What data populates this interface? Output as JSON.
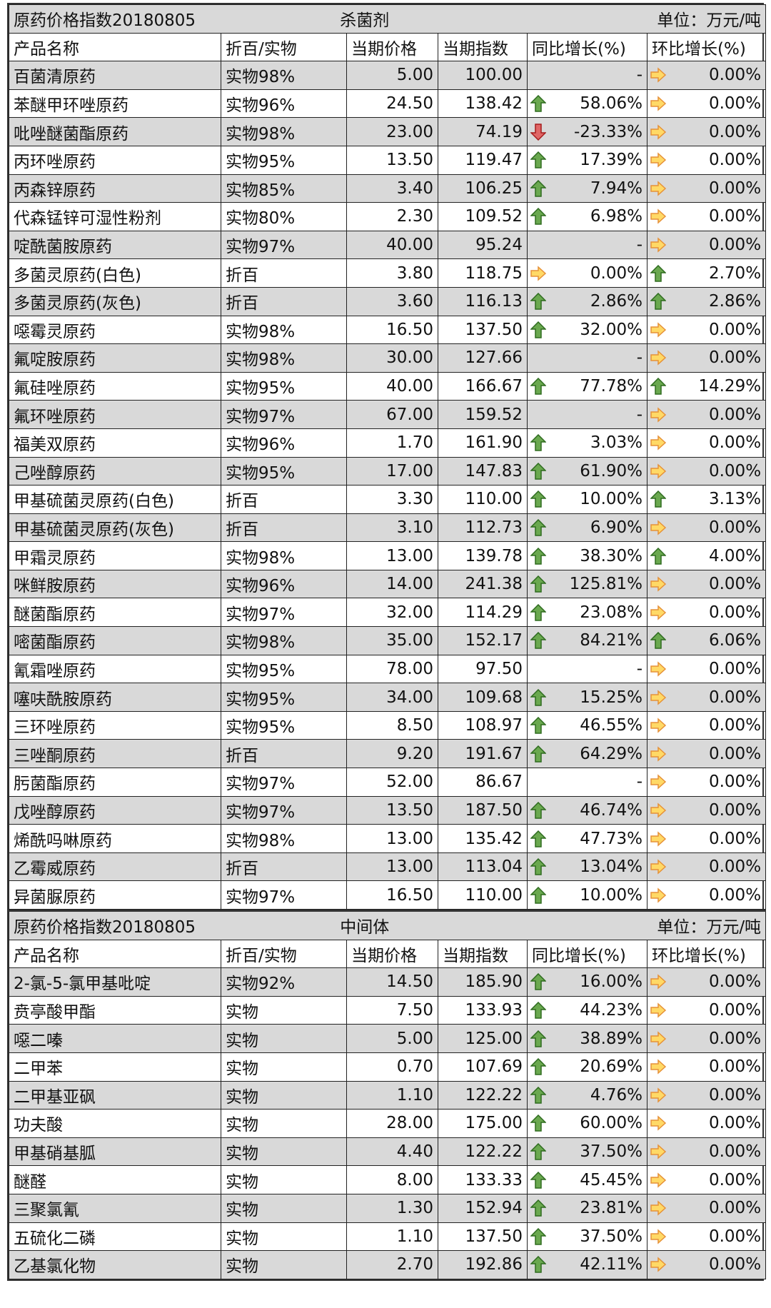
{
  "tables": [
    {
      "title": "原药价格指数20180805",
      "category": "杀菌剂",
      "unit": "单位：万元/吨",
      "columns": [
        "产品名称",
        "折百/实物",
        "当期价格",
        "当期指数",
        "同比增长(%)",
        "环比增长(%)"
      ],
      "rows": [
        [
          "百菌清原药",
          "实物98%",
          "5.00",
          "100.00",
          "-",
          "0.00%"
        ],
        [
          "苯醚甲环唑原药",
          "实物96%",
          "24.50",
          "138.42",
          "58.06%",
          "0.00%"
        ],
        [
          "吡唑醚菌酯原药",
          "实物98%",
          "23.00",
          "74.19",
          "-23.33%",
          "0.00%"
        ],
        [
          "丙环唑原药",
          "实物95%",
          "13.50",
          "119.47",
          "17.39%",
          "0.00%"
        ],
        [
          "丙森锌原药",
          "实物85%",
          "3.40",
          "106.25",
          "7.94%",
          "0.00%"
        ],
        [
          "代森锰锌可湿性粉剂",
          "实物80%",
          "2.30",
          "109.52",
          "6.98%",
          "0.00%"
        ],
        [
          "啶酰菌胺原药",
          "实物97%",
          "40.00",
          "95.24",
          "-",
          "0.00%"
        ],
        [
          "多菌灵原药(白色)",
          "折百",
          "3.80",
          "118.75",
          "0.00%",
          "2.70%"
        ],
        [
          "多菌灵原药(灰色)",
          "折百",
          "3.60",
          "116.13",
          "2.86%",
          "2.86%"
        ],
        [
          "噁霉灵原药",
          "实物98%",
          "16.50",
          "137.50",
          "32.00%",
          "0.00%"
        ],
        [
          "氟啶胺原药",
          "实物98%",
          "30.00",
          "127.66",
          "-",
          "0.00%"
        ],
        [
          "氟硅唑原药",
          "实物95%",
          "40.00",
          "166.67",
          "77.78%",
          "14.29%"
        ],
        [
          "氟环唑原药",
          "实物97%",
          "67.00",
          "159.52",
          "-",
          "0.00%"
        ],
        [
          "福美双原药",
          "实物96%",
          "1.70",
          "161.90",
          "3.03%",
          "0.00%"
        ],
        [
          "己唑醇原药",
          "实物95%",
          "17.00",
          "147.83",
          "61.90%",
          "0.00%"
        ],
        [
          "甲基硫菌灵原药(白色)",
          "折百",
          "3.30",
          "110.00",
          "10.00%",
          "3.13%"
        ],
        [
          "甲基硫菌灵原药(灰色)",
          "折百",
          "3.10",
          "112.73",
          "6.90%",
          "0.00%"
        ],
        [
          "甲霜灵原药",
          "实物98%",
          "13.00",
          "139.78",
          "38.30%",
          "4.00%"
        ],
        [
          "咪鲜胺原药",
          "实物96%",
          "14.00",
          "241.38",
          "125.81%",
          "0.00%"
        ],
        [
          "醚菌酯原药",
          "实物97%",
          "32.00",
          "114.29",
          "23.08%",
          "0.00%"
        ],
        [
          "嘧菌酯原药",
          "实物98%",
          "35.00",
          "152.17",
          "84.21%",
          "6.06%"
        ],
        [
          "氰霜唑原药",
          "实物95%",
          "78.00",
          "97.50",
          "-",
          "0.00%"
        ],
        [
          "噻呋酰胺原药",
          "实物95%",
          "34.00",
          "109.68",
          "15.25%",
          "0.00%"
        ],
        [
          "三环唑原药",
          "实物95%",
          "8.50",
          "108.97",
          "46.55%",
          "0.00%"
        ],
        [
          "三唑酮原药",
          "折百",
          "9.20",
          "191.67",
          "64.29%",
          "0.00%"
        ],
        [
          "肟菌酯原药",
          "实物97%",
          "52.00",
          "86.67",
          "-",
          "0.00%"
        ],
        [
          "戊唑醇原药",
          "实物97%",
          "13.50",
          "187.50",
          "46.74%",
          "0.00%"
        ],
        [
          "烯酰吗啉原药",
          "实物98%",
          "13.00",
          "135.42",
          "47.73%",
          "0.00%"
        ],
        [
          "乙霉威原药",
          "折百",
          "13.00",
          "113.04",
          "13.04%",
          "0.00%"
        ],
        [
          "异菌脲原药",
          "实物97%",
          "16.50",
          "110.00",
          "10.00%",
          "0.00%"
        ]
      ],
      "trends": [
        [
          null,
          "flat"
        ],
        [
          "up",
          "flat"
        ],
        [
          "down",
          "flat"
        ],
        [
          "up",
          "flat"
        ],
        [
          "up",
          "flat"
        ],
        [
          "up",
          "flat"
        ],
        [
          null,
          "flat"
        ],
        [
          "flat",
          "up"
        ],
        [
          "up",
          "up"
        ],
        [
          "up",
          "flat"
        ],
        [
          null,
          "flat"
        ],
        [
          "up",
          "up"
        ],
        [
          null,
          "flat"
        ],
        [
          "up",
          "flat"
        ],
        [
          "up",
          "flat"
        ],
        [
          "up",
          "up"
        ],
        [
          "up",
          "flat"
        ],
        [
          "up",
          "up"
        ],
        [
          "up",
          "flat"
        ],
        [
          "up",
          "flat"
        ],
        [
          "up",
          "up"
        ],
        [
          null,
          "flat"
        ],
        [
          "up",
          "flat"
        ],
        [
          "up",
          "flat"
        ],
        [
          "up",
          "flat"
        ],
        [
          null,
          "flat"
        ],
        [
          "up",
          "flat"
        ],
        [
          "up",
          "flat"
        ],
        [
          "up",
          "flat"
        ],
        [
          "up",
          "flat"
        ]
      ]
    },
    {
      "title": "原药价格指数20180805",
      "category": "中间体",
      "unit": "单位：万元/吨",
      "columns": [
        "产品名称",
        "折百/实物",
        "当期价格",
        "当期指数",
        "同比增长(%)",
        "环比增长(%)"
      ],
      "rows": [
        [
          "2-氯-5-氯甲基吡啶",
          "实物92%",
          "14.50",
          "185.90",
          "16.00%",
          "0.00%"
        ],
        [
          "贲亭酸甲酯",
          "实物",
          "7.50",
          "133.93",
          "44.23%",
          "0.00%"
        ],
        [
          "噁二嗪",
          "实物",
          "5.00",
          "125.00",
          "38.89%",
          "0.00%"
        ],
        [
          "二甲苯",
          "实物",
          "0.70",
          "107.69",
          "20.69%",
          "0.00%"
        ],
        [
          "二甲基亚砜",
          "实物",
          "1.10",
          "122.22",
          "4.76%",
          "0.00%"
        ],
        [
          "功夫酸",
          "实物",
          "28.00",
          "175.00",
          "60.00%",
          "0.00%"
        ],
        [
          "甲基硝基胍",
          "实物",
          "4.40",
          "122.22",
          "37.50%",
          "0.00%"
        ],
        [
          "醚醛",
          "实物",
          "8.00",
          "133.33",
          "45.45%",
          "0.00%"
        ],
        [
          "三聚氯氰",
          "实物",
          "1.30",
          "152.94",
          "23.81%",
          "0.00%"
        ],
        [
          "五硫化二磷",
          "实物",
          "1.10",
          "137.50",
          "37.50%",
          "0.00%"
        ],
        [
          "乙基氯化物",
          "实物",
          "2.70",
          "192.86",
          "42.11%",
          "0.00%"
        ]
      ],
      "trends": [
        [
          "up",
          "flat"
        ],
        [
          "up",
          "flat"
        ],
        [
          "up",
          "flat"
        ],
        [
          "up",
          "flat"
        ],
        [
          "up",
          "flat"
        ],
        [
          "up",
          "flat"
        ],
        [
          "up",
          "flat"
        ],
        [
          "up",
          "flat"
        ],
        [
          "up",
          "flat"
        ],
        [
          "up",
          "flat"
        ],
        [
          "up",
          "flat"
        ]
      ]
    }
  ]
}
